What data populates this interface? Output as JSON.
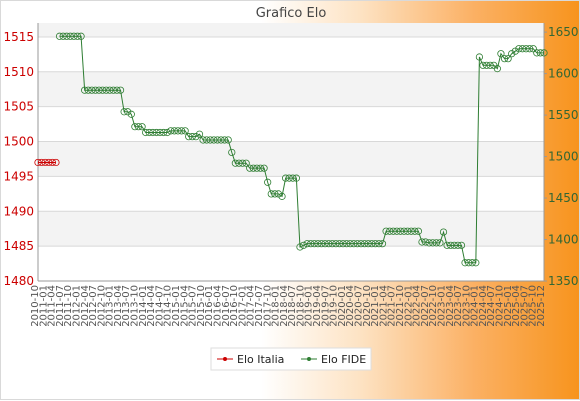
{
  "chart_data": {
    "type": "line",
    "title": "Grafico Elo",
    "xlabel": "",
    "ylabel": "",
    "y_left": {
      "ticks": [
        1480,
        1485,
        1490,
        1495,
        1500,
        1505,
        1510,
        1515
      ],
      "range": [
        1480,
        1517
      ],
      "color": "#cc0000"
    },
    "y_right": {
      "ticks": [
        1350,
        1400,
        1450,
        1500,
        1550,
        1600,
        1650
      ],
      "range": [
        1350,
        1661
      ],
      "color": "#336633"
    },
    "x_tick_labels": [
      "2010-10",
      "2011-01",
      "2011-04",
      "2011-07",
      "2011-10",
      "2012-01",
      "2012-04",
      "2012-07",
      "2012-10",
      "2013-01",
      "2013-04",
      "2013-07",
      "2013-10",
      "2014-01",
      "2014-04",
      "2014-07",
      "2014-10",
      "2015-01",
      "2015-04",
      "2015-07",
      "2015-10",
      "2016-01",
      "2016-04",
      "2016-07",
      "2016-10",
      "2017-01",
      "2017-04",
      "2017-07",
      "2017-10",
      "2018-01",
      "2018-04",
      "2018-07",
      "2018-10",
      "2019-01",
      "2019-04",
      "2019-07",
      "2019-10",
      "2020-01",
      "2020-04",
      "2020-07",
      "2020-10",
      "2021-01",
      "2021-04",
      "2021-07",
      "2021-10",
      "2022-01",
      "2022-04",
      "2022-07",
      "2022-10",
      "2023-01",
      "2023-04",
      "2023-07",
      "2023-10",
      "2024-01",
      "2024-04",
      "2024-07",
      "2024-10",
      "2025-01",
      "2025-04",
      "2025-07",
      "2025-10",
      "2025-12"
    ],
    "grid": true,
    "legend_position": "bottom",
    "series": [
      {
        "name": "Elo Italia",
        "axis": "left",
        "color": "#cc0000",
        "values": [
          1497,
          1497,
          1497,
          1497,
          1497,
          1497
        ]
      },
      {
        "name": "Elo FIDE",
        "axis": "right",
        "color": "#2e7d32",
        "start_index": 6,
        "values": [
          1645,
          1645,
          1645,
          1645,
          1645,
          1645,
          1645,
          1580,
          1580,
          1580,
          1580,
          1580,
          1580,
          1580,
          1580,
          1580,
          1580,
          1580,
          1554,
          1554,
          1551,
          1536,
          1536,
          1536,
          1529,
          1529,
          1529,
          1529,
          1529,
          1529,
          1529,
          1531,
          1531,
          1531,
          1531,
          1531,
          1524,
          1524,
          1524,
          1527,
          1520,
          1520,
          1520,
          1520,
          1520,
          1520,
          1520,
          1520,
          1505,
          1492,
          1492,
          1492,
          1492,
          1486,
          1486,
          1486,
          1486,
          1486,
          1469,
          1455,
          1455,
          1455,
          1452,
          1474,
          1474,
          1474,
          1474,
          1391,
          1393,
          1395,
          1395,
          1395,
          1395,
          1395,
          1395,
          1395,
          1395,
          1395,
          1395,
          1395,
          1395,
          1395,
          1395,
          1395,
          1395,
          1395,
          1395,
          1395,
          1395,
          1395,
          1395,
          1410,
          1410,
          1410,
          1410,
          1410,
          1410,
          1410,
          1410,
          1410,
          1410,
          1397,
          1397,
          1396,
          1396,
          1396,
          1396,
          1409,
          1393,
          1393,
          1393,
          1393,
          1393,
          1372,
          1372,
          1372,
          1372,
          1620,
          1610,
          1610,
          1610,
          1610,
          1606,
          1624,
          1618,
          1618,
          1624,
          1627,
          1630,
          1630,
          1630,
          1630,
          1630,
          1625,
          1625,
          1625
        ]
      }
    ]
  }
}
